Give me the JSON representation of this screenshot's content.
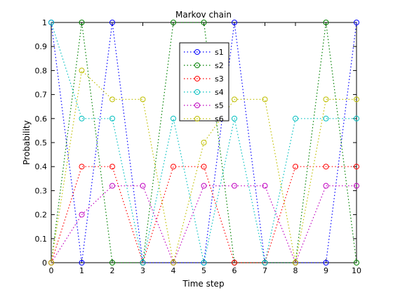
{
  "chart_data": {
    "type": "line",
    "title": "Markov chain",
    "xlabel": "Time step",
    "ylabel": "Probability",
    "xlim": [
      0,
      10
    ],
    "ylim": [
      0,
      1
    ],
    "x": [
      0,
      1,
      2,
      3,
      4,
      5,
      6,
      7,
      8,
      9,
      10
    ],
    "xticks": [
      "0",
      "1",
      "2",
      "3",
      "4",
      "5",
      "6",
      "7",
      "8",
      "9",
      "10"
    ],
    "yticks": [
      "0",
      "0.1",
      "0.2",
      "0.3",
      "0.4",
      "0.5",
      "0.6",
      "0.7",
      "0.8",
      "0.9",
      "1"
    ],
    "grid": false,
    "legend_position": "top-center",
    "line_style": "dotted",
    "marker": "circle",
    "series": [
      {
        "name": "s1",
        "color": "#0000ff",
        "values": [
          1,
          0,
          1,
          0,
          0,
          0,
          1,
          0,
          0,
          0,
          1
        ]
      },
      {
        "name": "s2",
        "color": "#008000",
        "values": [
          0,
          1,
          0,
          0,
          1,
          1,
          0,
          0,
          0,
          1,
          0
        ]
      },
      {
        "name": "s3",
        "color": "#ff0000",
        "values": [
          0,
          0.4,
          0.4,
          0,
          0.4,
          0.4,
          0,
          0,
          0.4,
          0.4,
          0.4
        ]
      },
      {
        "name": "s4",
        "color": "#00bfbf",
        "values": [
          1,
          0.6,
          0.6,
          0,
          0.6,
          0,
          0.6,
          0,
          0.6,
          0.6,
          0.6
        ]
      },
      {
        "name": "s5",
        "color": "#bf00bf",
        "values": [
          0,
          0.2,
          0.32,
          0.32,
          0,
          0.32,
          0.32,
          0.32,
          0,
          0.32,
          0.32
        ]
      },
      {
        "name": "s6",
        "color": "#bfbf00",
        "values": [
          0,
          0.8,
          0.68,
          0.68,
          0,
          0.5,
          0.68,
          0.68,
          0,
          0.68,
          0.68
        ]
      }
    ]
  }
}
